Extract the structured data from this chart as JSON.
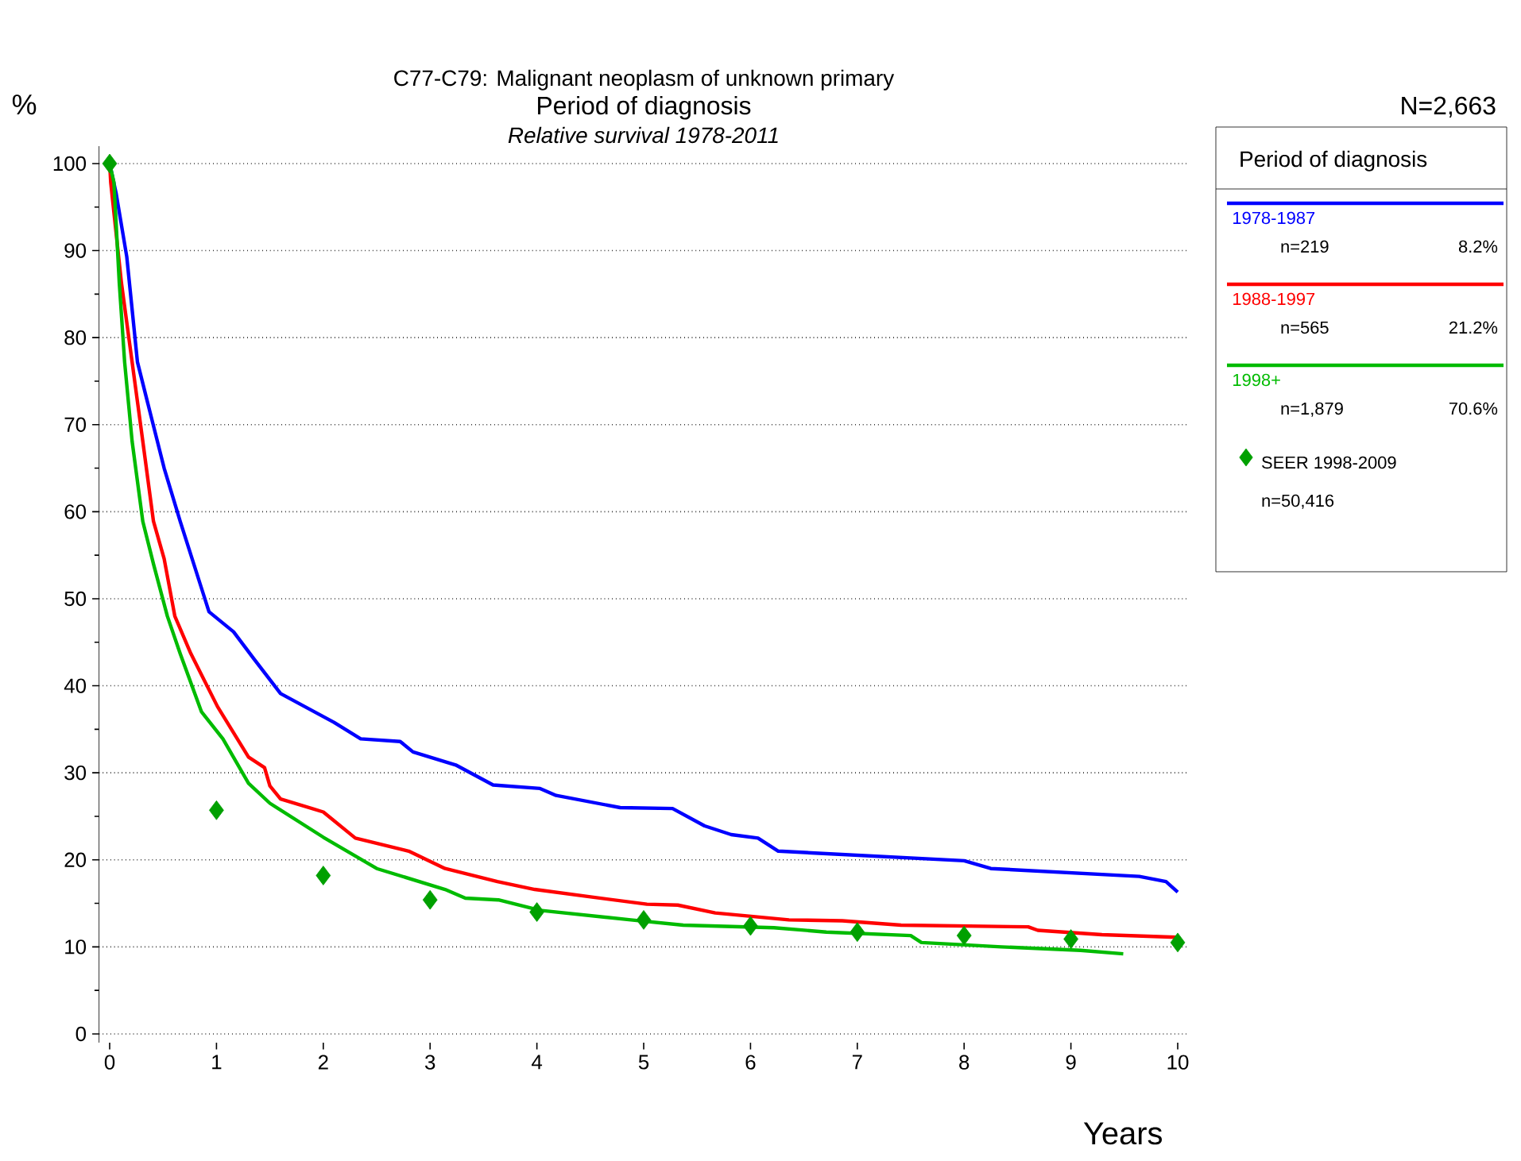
{
  "chart_data": {
    "type": "line",
    "title": "C77-C79: Malignant neoplasm of unknown primary",
    "subtitle": "Period of diagnosis",
    "xlabel": "Years",
    "ylabel": "%",
    "legend_title": "Period of diagnosis",
    "annotations": [
      "Relative survival 1978-2011",
      "N=2,663",
      "n=219",
      "8.2%",
      "n=565",
      "21.2%",
      "n=1,879",
      "70.6%",
      "n=50,416"
    ],
    "xlim": [
      -0.1,
      10.1
    ],
    "ylim": [
      -1,
      102
    ],
    "xticks": [
      0,
      1,
      2,
      3,
      4,
      5,
      6,
      7,
      8,
      9,
      10
    ],
    "yticks": [
      0,
      10,
      20,
      30,
      40,
      50,
      60,
      70,
      80,
      90,
      100
    ],
    "grid": "y",
    "legend": "right",
    "marker": "none",
    "line_style": "solid",
    "series": [
      {
        "name": "1978-1987",
        "color": "#0000ff",
        "x": [
          0,
          0.06,
          0.16,
          0.26,
          0.36,
          0.51,
          0.66,
          0.93,
          1.16,
          1.35,
          1.6,
          2.1,
          2.35,
          2.72,
          2.84,
          3.24,
          3.59,
          4.03,
          4.18,
          4.78,
          5.27,
          5.57,
          5.82,
          6.07,
          6.26,
          8.0,
          8.25,
          9.64,
          9.89,
          10.0
        ],
        "values": [
          100,
          96.6,
          89.3,
          77.2,
          72.3,
          65,
          58.9,
          48.5,
          46.2,
          43.1,
          39.1,
          35.8,
          33.9,
          33.6,
          32.4,
          30.9,
          28.6,
          28.2,
          27.4,
          26.0,
          25.9,
          23.9,
          22.9,
          22.5,
          21.0,
          19.9,
          19.0,
          18.1,
          17.5,
          16.3
        ]
      },
      {
        "name": "1988-1997",
        "color": "#ff0000",
        "x": [
          0,
          0.01,
          0.11,
          0.21,
          0.31,
          0.41,
          0.51,
          0.61,
          0.76,
          1.01,
          1.3,
          1.45,
          1.5,
          1.6,
          2.0,
          2.3,
          2.8,
          3.14,
          3.63,
          3.98,
          4.53,
          5.03,
          5.32,
          5.67,
          6.36,
          6.86,
          7.41,
          8.6,
          8.69,
          9.29,
          9.99
        ],
        "values": [
          100,
          97.8,
          86.3,
          77.2,
          68.1,
          58.9,
          54.6,
          48,
          43.7,
          37.6,
          31.8,
          30.6,
          28.5,
          27,
          25.5,
          22.5,
          21,
          19.0,
          17.5,
          16.6,
          15.7,
          14.9,
          14.8,
          13.9,
          13.1,
          13.0,
          12.5,
          12.3,
          11.9,
          11.4,
          11.1
        ]
      },
      {
        "name": "1998+",
        "color": "#00bb00",
        "x": [
          0,
          0.04,
          0.09,
          0.14,
          0.21,
          0.31,
          0.41,
          0.54,
          0.66,
          0.86,
          1.06,
          1.3,
          1.5,
          2.0,
          2.5,
          3.14,
          3.33,
          3.64,
          4.03,
          4.88,
          5.37,
          6.22,
          6.71,
          7.5,
          7.6,
          8.35,
          9.09,
          9.49
        ],
        "values": [
          100,
          97.8,
          86.3,
          77.2,
          68.1,
          58.9,
          54,
          48,
          43.7,
          37,
          33.9,
          28.8,
          26.5,
          22.6,
          19,
          16.6,
          15.6,
          15.4,
          14.2,
          13.1,
          12.5,
          12.2,
          11.7,
          11.3,
          10.5,
          10.0,
          9.6,
          9.2
        ]
      },
      {
        "name": "SEER 1998-2009",
        "type": "scatter",
        "marker": "diamond",
        "color": "#00a000",
        "x": [
          0,
          1,
          2,
          3,
          4,
          5,
          6,
          7,
          8,
          9,
          10
        ],
        "values": [
          100,
          25.7,
          18.2,
          15.4,
          14.0,
          13.1,
          12.4,
          11.7,
          11.3,
          10.9,
          10.5
        ]
      }
    ]
  }
}
